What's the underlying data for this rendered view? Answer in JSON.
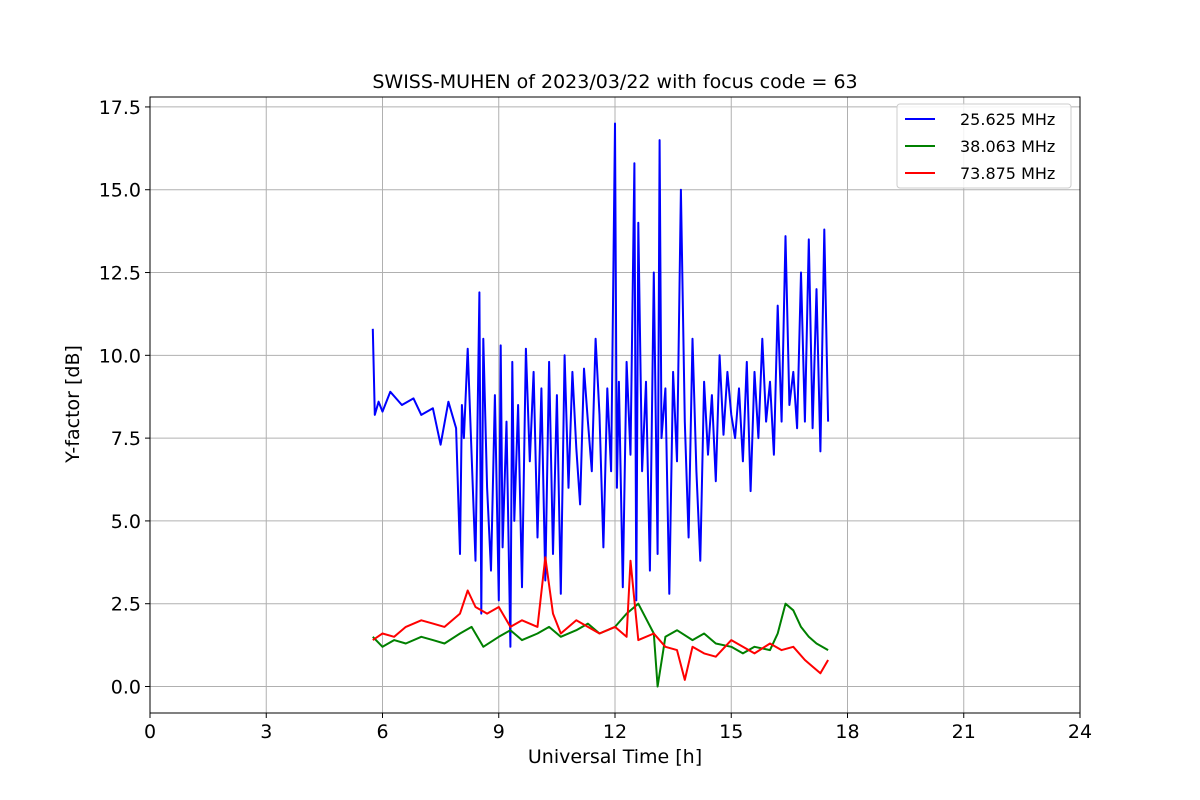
{
  "chart_data": {
    "type": "line",
    "title": "SWISS-MUHEN of 2023/03/22 with focus code = 63",
    "xlabel": "Universal Time [h]",
    "ylabel": "Y-factor [dB]",
    "xlim": [
      0,
      24
    ],
    "ylim": [
      -0.8,
      17.8
    ],
    "xticks": [
      0,
      3,
      6,
      9,
      12,
      15,
      18,
      21,
      24
    ],
    "xtick_labels": [
      "0",
      "3",
      "6",
      "9",
      "12",
      "15",
      "18",
      "21",
      "24"
    ],
    "yticks": [
      0,
      2.5,
      5,
      7.5,
      10,
      12.5,
      15,
      17.5
    ],
    "ytick_labels": [
      "0.0",
      "2.5",
      "5.0",
      "7.5",
      "10.0",
      "12.5",
      "15.0",
      "17.5"
    ],
    "grid": true,
    "legend_position": "top-right",
    "series": [
      {
        "name": "25.625 MHz",
        "color": "#0000ff",
        "x": [
          5.75,
          5.8,
          5.9,
          6.0,
          6.2,
          6.5,
          6.8,
          7.0,
          7.3,
          7.5,
          7.7,
          7.9,
          8.0,
          8.05,
          8.1,
          8.2,
          8.3,
          8.4,
          8.5,
          8.55,
          8.6,
          8.7,
          8.8,
          8.9,
          9.0,
          9.05,
          9.1,
          9.2,
          9.3,
          9.35,
          9.4,
          9.5,
          9.6,
          9.7,
          9.8,
          9.9,
          10.0,
          10.1,
          10.2,
          10.3,
          10.4,
          10.5,
          10.6,
          10.7,
          10.8,
          10.9,
          11.0,
          11.1,
          11.2,
          11.3,
          11.4,
          11.5,
          11.6,
          11.7,
          11.8,
          11.9,
          11.95,
          12.0,
          12.05,
          12.1,
          12.2,
          12.3,
          12.4,
          12.5,
          12.55,
          12.6,
          12.7,
          12.8,
          12.9,
          13.0,
          13.1,
          13.15,
          13.2,
          13.3,
          13.4,
          13.5,
          13.6,
          13.7,
          13.8,
          13.9,
          14.0,
          14.1,
          14.2,
          14.3,
          14.4,
          14.5,
          14.6,
          14.7,
          14.8,
          14.9,
          15.0,
          15.1,
          15.2,
          15.3,
          15.4,
          15.5,
          15.6,
          15.7,
          15.8,
          15.9,
          16.0,
          16.1,
          16.2,
          16.3,
          16.4,
          16.5,
          16.6,
          16.7,
          16.8,
          16.9,
          17.0,
          17.1,
          17.2,
          17.3,
          17.4,
          17.5
        ],
        "y": [
          10.8,
          8.2,
          8.6,
          8.3,
          8.9,
          8.5,
          8.7,
          8.2,
          8.4,
          7.3,
          8.6,
          7.8,
          4.0,
          8.5,
          7.5,
          10.2,
          7.0,
          3.8,
          11.9,
          2.2,
          10.5,
          6.0,
          3.5,
          8.8,
          2.6,
          10.3,
          4.2,
          8.0,
          1.2,
          9.8,
          5.0,
          8.5,
          3.0,
          10.2,
          6.8,
          9.5,
          4.5,
          9.0,
          3.2,
          9.8,
          4.0,
          8.8,
          2.8,
          10.0,
          6.0,
          9.5,
          7.2,
          5.5,
          9.6,
          8.0,
          6.5,
          10.5,
          8.2,
          4.2,
          9.0,
          6.5,
          11.8,
          17.0,
          6.0,
          9.2,
          3.0,
          9.8,
          7.0,
          15.8,
          2.6,
          14.0,
          6.5,
          9.2,
          3.5,
          12.5,
          4.0,
          16.5,
          7.5,
          9.0,
          2.8,
          9.5,
          6.8,
          15.0,
          8.0,
          4.5,
          10.5,
          6.5,
          3.8,
          9.2,
          7.0,
          8.8,
          6.2,
          10.0,
          7.6,
          9.5,
          8.2,
          7.5,
          9.0,
          6.8,
          9.8,
          5.9,
          9.5,
          7.5,
          10.5,
          8.0,
          9.2,
          7.0,
          11.5,
          8.0,
          13.6,
          8.5,
          9.5,
          7.8,
          12.5,
          8.0,
          13.5,
          7.8,
          12.0,
          7.1,
          13.8,
          8.0
        ]
      },
      {
        "name": "38.063 MHz",
        "color": "#008000",
        "x": [
          5.75,
          6.0,
          6.3,
          6.6,
          7.0,
          7.3,
          7.6,
          8.0,
          8.3,
          8.6,
          9.0,
          9.3,
          9.6,
          10.0,
          10.3,
          10.6,
          11.0,
          11.3,
          11.6,
          12.0,
          12.3,
          12.6,
          13.0,
          13.1,
          13.3,
          13.6,
          14.0,
          14.3,
          14.6,
          15.0,
          15.3,
          15.6,
          16.0,
          16.2,
          16.4,
          16.6,
          16.8,
          17.0,
          17.2,
          17.5
        ],
        "y": [
          1.5,
          1.2,
          1.4,
          1.3,
          1.5,
          1.4,
          1.3,
          1.6,
          1.8,
          1.2,
          1.5,
          1.7,
          1.4,
          1.6,
          1.8,
          1.5,
          1.7,
          1.9,
          1.6,
          1.8,
          2.2,
          2.5,
          1.6,
          0.0,
          1.5,
          1.7,
          1.4,
          1.6,
          1.3,
          1.2,
          1.0,
          1.2,
          1.1,
          1.6,
          2.5,
          2.3,
          1.8,
          1.5,
          1.3,
          1.1
        ]
      },
      {
        "name": "73.875 MHz",
        "color": "#ff0000",
        "x": [
          5.75,
          6.0,
          6.3,
          6.6,
          7.0,
          7.3,
          7.6,
          8.0,
          8.2,
          8.4,
          8.7,
          9.0,
          9.3,
          9.6,
          10.0,
          10.2,
          10.4,
          10.6,
          11.0,
          11.3,
          11.6,
          12.0,
          12.3,
          12.4,
          12.6,
          13.0,
          13.3,
          13.6,
          13.8,
          14.0,
          14.3,
          14.6,
          15.0,
          15.3,
          15.6,
          16.0,
          16.3,
          16.6,
          16.9,
          17.1,
          17.3,
          17.5
        ],
        "y": [
          1.4,
          1.6,
          1.5,
          1.8,
          2.0,
          1.9,
          1.8,
          2.2,
          2.9,
          2.4,
          2.2,
          2.4,
          1.8,
          2.0,
          1.8,
          3.9,
          2.2,
          1.6,
          2.0,
          1.8,
          1.6,
          1.8,
          1.5,
          3.8,
          1.4,
          1.6,
          1.2,
          1.1,
          0.2,
          1.2,
          1.0,
          0.9,
          1.4,
          1.2,
          1.0,
          1.3,
          1.1,
          1.2,
          0.8,
          0.6,
          0.4,
          0.8
        ]
      }
    ]
  }
}
